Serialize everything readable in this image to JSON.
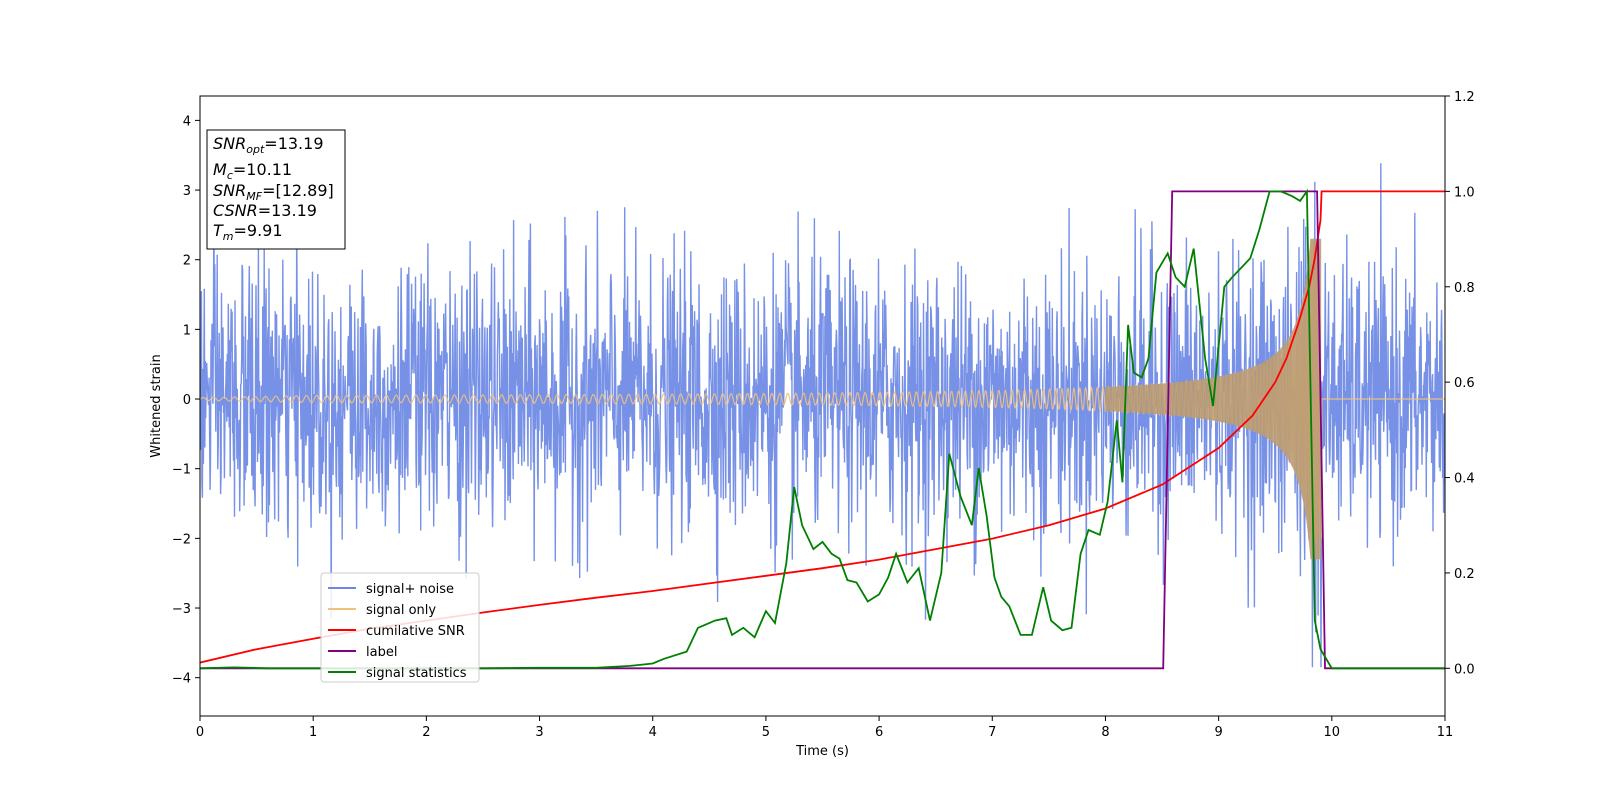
{
  "chart_data": {
    "type": "line",
    "xlabel": "Time (s)",
    "ylabel": "Whitened strain",
    "xlim": [
      0,
      11
    ],
    "ylim": [
      -4.55,
      4.35
    ],
    "y2lim": [
      -0.1,
      1.2
    ],
    "x_ticks": [
      0,
      1,
      2,
      3,
      4,
      5,
      6,
      7,
      8,
      9,
      10,
      11
    ],
    "y_ticks": [
      -4,
      -3,
      -2,
      -1,
      0,
      1,
      2,
      3,
      4
    ],
    "y_tick_labels": [
      "−4",
      "−3",
      "−2",
      "−1",
      "0",
      "1",
      "2",
      "3",
      "4"
    ],
    "y2_ticks": [
      0.0,
      0.2,
      0.4,
      0.6,
      0.8,
      1.0,
      1.2
    ],
    "y2_tick_labels": [
      "0.0",
      "0.2",
      "0.4",
      "0.6",
      "0.8",
      "1.0",
      "1.2"
    ],
    "legend_position": "lower-left",
    "grid": false,
    "annotation": {
      "lines": [
        {
          "main": "SNR",
          "sub": "opt",
          "value": "=13.19"
        },
        {
          "main": "M",
          "sub": "c",
          "value": "=10.11"
        },
        {
          "main": "SNR",
          "sub": "MF",
          "value": "=[12.89]"
        },
        {
          "main": "CSNR",
          "sub": "",
          "value": "=13.19"
        },
        {
          "main": "T",
          "sub": "m",
          "value": "=9.91"
        }
      ]
    },
    "series": [
      {
        "name": "signal+ noise",
        "axis": "left",
        "color": "#6b88e5",
        "kind": "noise",
        "sigma": 0.95,
        "visible_max": 3.95,
        "visible_min": -3.85,
        "merger_time": 9.91
      },
      {
        "name": "signal only",
        "axis": "left",
        "color": "#f2c17c",
        "kind": "chirp",
        "merger_time": 9.91,
        "amplitude_at_start": 0.03,
        "amplitude_at_8s": 0.16,
        "amplitude_at_9s": 0.42,
        "amplitude_at_merger": 2.3
      },
      {
        "name": "cumilative SNR",
        "axis": "right",
        "color": "#ff0000",
        "x": [
          0,
          0.5,
          1,
          1.5,
          2,
          2.5,
          3,
          3.5,
          4,
          4.5,
          5,
          5.5,
          6,
          6.5,
          7,
          7.5,
          8,
          8.5,
          9,
          9.3,
          9.5,
          9.6,
          9.7,
          9.8,
          9.85,
          9.9,
          9.91,
          11
        ],
        "y": [
          0.012,
          0.04,
          0.062,
          0.083,
          0.1,
          0.117,
          0.133,
          0.148,
          0.162,
          0.178,
          0.194,
          0.21,
          0.228,
          0.25,
          0.272,
          0.3,
          0.335,
          0.385,
          0.462,
          0.53,
          0.6,
          0.65,
          0.72,
          0.8,
          0.86,
          0.94,
          1.0,
          1.0
        ]
      },
      {
        "name": "label",
        "axis": "right",
        "color": "#800080",
        "x": [
          0,
          8.51,
          8.59,
          9.87,
          9.94,
          11
        ],
        "y": [
          0.0,
          0.0,
          1.0,
          1.0,
          0.0,
          0.0
        ]
      },
      {
        "name": "signal statistics",
        "axis": "right",
        "color": "#008000",
        "x": [
          0,
          0.3,
          0.6,
          1,
          1.5,
          2,
          2.5,
          3,
          3.5,
          3.8,
          4.0,
          4.1,
          4.3,
          4.4,
          4.45,
          4.55,
          4.65,
          4.7,
          4.8,
          4.9,
          5.0,
          5.08,
          5.18,
          5.25,
          5.32,
          5.42,
          5.5,
          5.58,
          5.65,
          5.72,
          5.8,
          5.9,
          6.0,
          6.08,
          6.15,
          6.25,
          6.35,
          6.45,
          6.55,
          6.62,
          6.72,
          6.82,
          6.88,
          6.95,
          7.02,
          7.08,
          7.15,
          7.25,
          7.35,
          7.45,
          7.52,
          7.62,
          7.7,
          7.78,
          7.85,
          7.95,
          8.02,
          8.1,
          8.15,
          8.2,
          8.25,
          8.32,
          8.38,
          8.45,
          8.5,
          8.55,
          8.62,
          8.7,
          8.78,
          8.88,
          8.95,
          9.05,
          9.12,
          9.2,
          9.28,
          9.36,
          9.45,
          9.55,
          9.65,
          9.72,
          9.78,
          9.85,
          9.9,
          9.95,
          10.0,
          10.1,
          11
        ],
        "y": [
          0.0,
          0.002,
          0.0,
          0.0,
          0.0,
          0.0,
          0.0,
          0.001,
          0.001,
          0.005,
          0.01,
          0.02,
          0.035,
          0.085,
          0.09,
          0.1,
          0.105,
          0.07,
          0.085,
          0.065,
          0.12,
          0.095,
          0.22,
          0.38,
          0.3,
          0.25,
          0.265,
          0.24,
          0.23,
          0.185,
          0.18,
          0.14,
          0.155,
          0.19,
          0.24,
          0.18,
          0.21,
          0.1,
          0.2,
          0.45,
          0.36,
          0.3,
          0.42,
          0.32,
          0.19,
          0.15,
          0.13,
          0.07,
          0.07,
          0.17,
          0.1,
          0.08,
          0.085,
          0.24,
          0.29,
          0.28,
          0.35,
          0.52,
          0.39,
          0.72,
          0.62,
          0.61,
          0.65,
          0.83,
          0.85,
          0.87,
          0.82,
          0.8,
          0.88,
          0.65,
          0.55,
          0.8,
          0.82,
          0.84,
          0.86,
          0.92,
          1.0,
          1.0,
          0.99,
          0.98,
          1.0,
          0.1,
          0.04,
          0.02,
          0.0,
          0.0,
          0.0
        ]
      }
    ]
  }
}
